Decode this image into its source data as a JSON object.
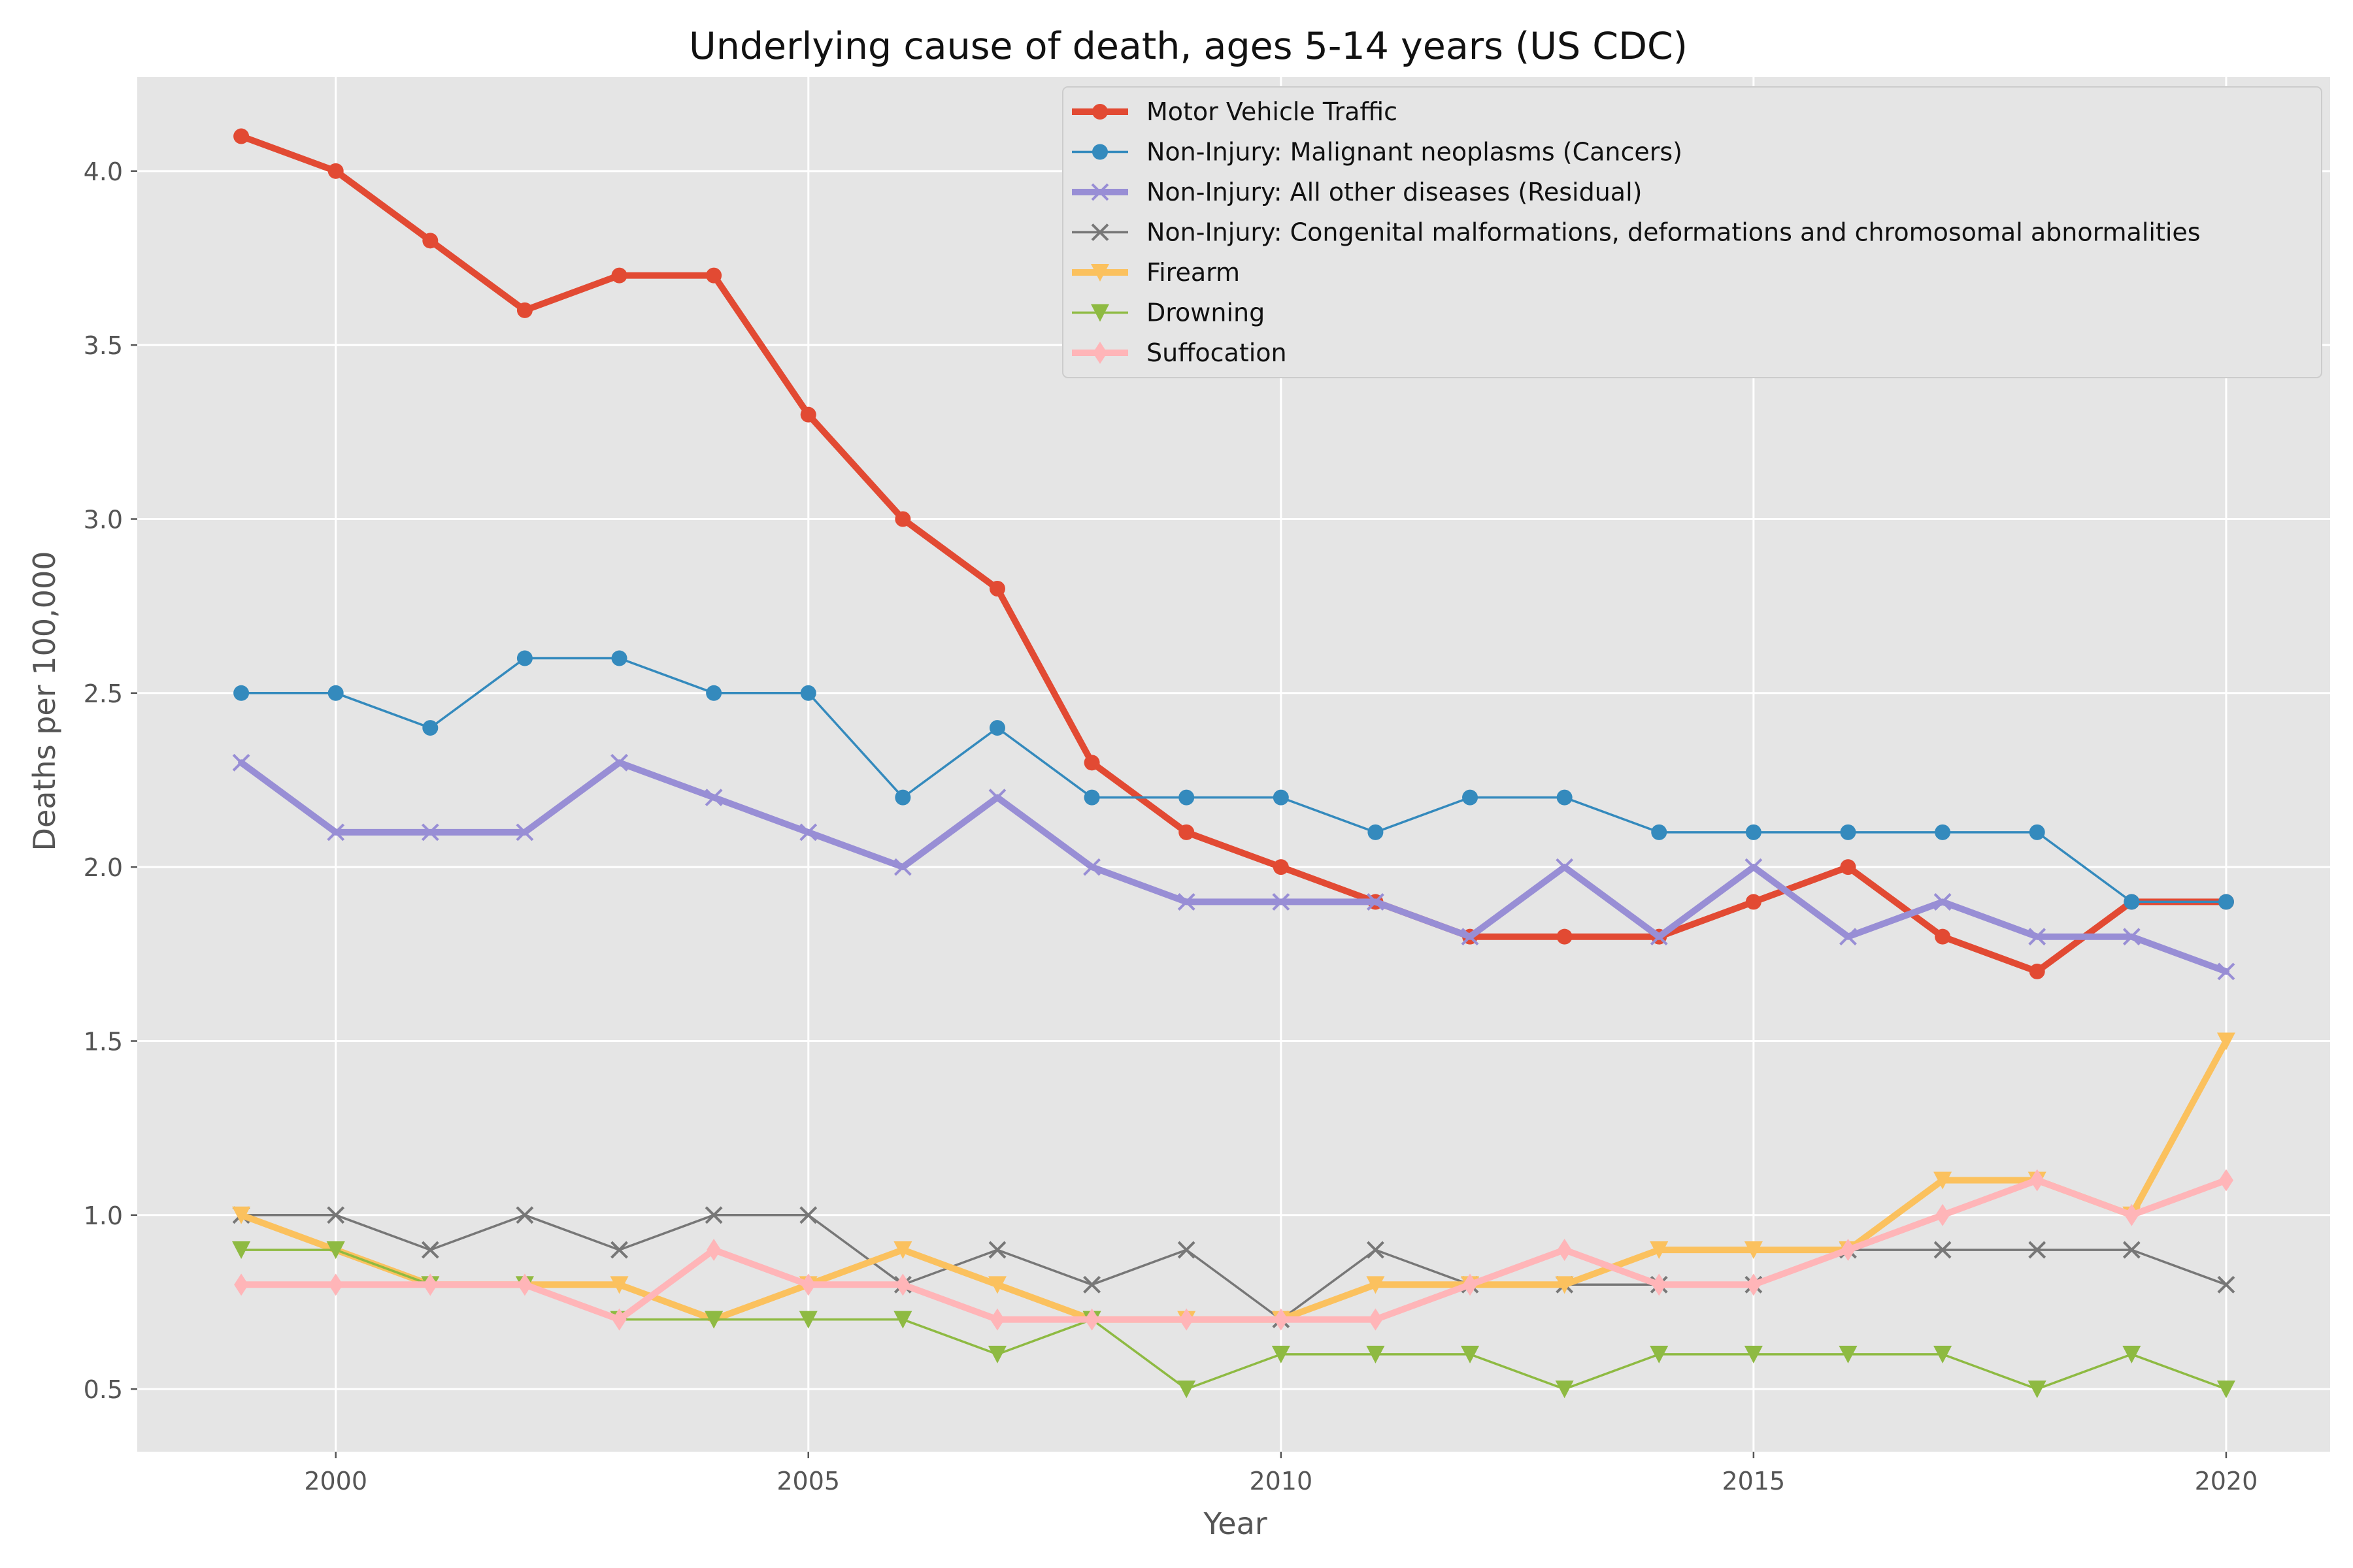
{
  "chart_data": {
    "type": "line",
    "title": "Underlying cause of death, ages 5-14 years (US CDC)",
    "xlabel": "Year",
    "ylabel": "Deaths per 100,000",
    "xlim": [
      1997.9,
      2021.1
    ],
    "ylim": [
      0.32,
      4.27
    ],
    "x_ticks": [
      2000,
      2005,
      2010,
      2015,
      2020
    ],
    "y_ticks": [
      0.5,
      1.0,
      1.5,
      2.0,
      2.5,
      3.0,
      3.5,
      4.0
    ],
    "x_tick_labels": [
      "2000",
      "2005",
      "2010",
      "2015",
      "2020"
    ],
    "y_tick_labels": [
      "0.5",
      "1.0",
      "1.5",
      "2.0",
      "2.5",
      "3.0",
      "3.5",
      "4.0"
    ],
    "grid": true,
    "legend_position": "top-right",
    "style": {
      "background": "#e5e5e5",
      "grid_color": "#ffffff"
    },
    "x": [
      1999,
      2000,
      2001,
      2002,
      2003,
      2004,
      2005,
      2006,
      2007,
      2008,
      2009,
      2010,
      2011,
      2012,
      2013,
      2014,
      2015,
      2016,
      2017,
      2018,
      2019,
      2020
    ],
    "series": [
      {
        "name": "Motor Vehicle Traffic",
        "color": "#e24a33",
        "marker": "circle",
        "weight": "bold",
        "values": [
          4.1,
          4.0,
          3.8,
          3.6,
          3.7,
          3.7,
          3.3,
          3.0,
          2.8,
          2.3,
          2.1,
          2.0,
          1.9,
          1.8,
          1.8,
          1.8,
          1.9,
          2.0,
          1.8,
          1.7,
          1.9,
          1.9
        ]
      },
      {
        "name": "Non-Injury: Malignant neoplasms (Cancers)",
        "color": "#348abd",
        "marker": "circle",
        "weight": "thin",
        "values": [
          2.5,
          2.5,
          2.4,
          2.6,
          2.6,
          2.5,
          2.5,
          2.2,
          2.4,
          2.2,
          2.2,
          2.2,
          2.1,
          2.2,
          2.2,
          2.1,
          2.1,
          2.1,
          2.1,
          2.1,
          1.9,
          1.9
        ]
      },
      {
        "name": "Non-Injury: All other diseases (Residual)",
        "color": "#988ed5",
        "marker": "x",
        "weight": "bold",
        "values": [
          2.3,
          2.1,
          2.1,
          2.1,
          2.3,
          2.2,
          2.1,
          2.0,
          2.2,
          2.0,
          1.9,
          1.9,
          1.9,
          1.8,
          2.0,
          1.8,
          2.0,
          1.8,
          1.9,
          1.8,
          1.8,
          1.7
        ]
      },
      {
        "name": "Non-Injury: Congenital malformations, deformations and chromosomal abnormalities",
        "color": "#777777",
        "marker": "x",
        "weight": "thin",
        "values": [
          1.0,
          1.0,
          0.9,
          1.0,
          0.9,
          1.0,
          1.0,
          0.8,
          0.9,
          0.8,
          0.9,
          0.7,
          0.9,
          0.8,
          0.8,
          0.8,
          0.8,
          0.9,
          0.9,
          0.9,
          0.9,
          0.8
        ]
      },
      {
        "name": "Firearm",
        "color": "#fbc15e",
        "marker": "triangle-down",
        "weight": "bold",
        "values": [
          1.0,
          0.9,
          0.8,
          0.8,
          0.8,
          0.7,
          0.8,
          0.9,
          0.8,
          0.7,
          0.7,
          0.7,
          0.8,
          0.8,
          0.8,
          0.9,
          0.9,
          0.9,
          1.1,
          1.1,
          1.0,
          1.5
        ]
      },
      {
        "name": "Drowning",
        "color": "#8eba42",
        "marker": "triangle-down",
        "weight": "thin",
        "values": [
          0.9,
          0.9,
          0.8,
          0.8,
          0.7,
          0.7,
          0.7,
          0.7,
          0.6,
          0.7,
          0.5,
          0.6,
          0.6,
          0.6,
          0.5,
          0.6,
          0.6,
          0.6,
          0.6,
          0.5,
          0.6,
          0.5
        ]
      },
      {
        "name": "Suffocation",
        "color": "#ffb5b8",
        "marker": "diamond",
        "weight": "bold",
        "values": [
          0.8,
          0.8,
          0.8,
          0.8,
          0.7,
          0.9,
          0.8,
          0.8,
          0.7,
          0.7,
          0.7,
          0.7,
          0.7,
          0.8,
          0.9,
          0.8,
          0.8,
          0.9,
          1.0,
          1.1,
          1.0,
          1.1
        ]
      }
    ]
  }
}
